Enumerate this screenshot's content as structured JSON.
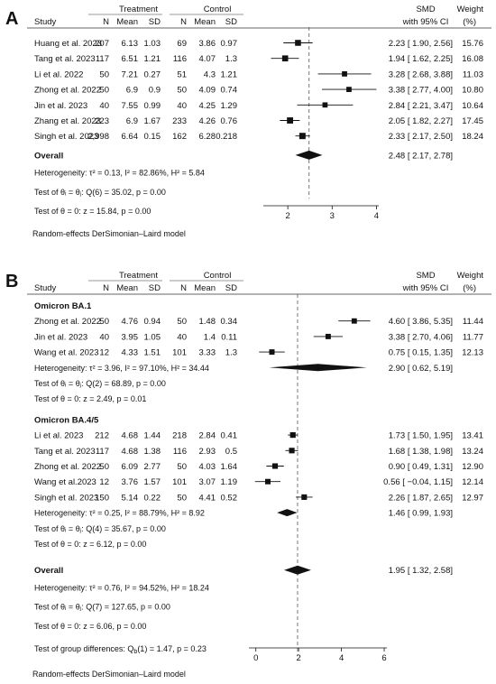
{
  "chart_data": [
    {
      "type": "forest",
      "panel": "A",
      "headers": {
        "study": "Study",
        "treatment": "Treatment",
        "control": "Control",
        "n": "N",
        "mean": "Mean",
        "sd": "SD",
        "effect_line1": "SMD",
        "effect_line2": "with 95% CI",
        "weight_line1": "Weight",
        "weight_line2": "(%)"
      },
      "xlim": [
        1,
        4.5
      ],
      "xticks": [
        2,
        3,
        4
      ],
      "null_line": 2.48,
      "groups": [
        {
          "label": "",
          "studies": [
            {
              "name": "Huang et al. 2023",
              "t_n": "207",
              "t_mean": "6.13",
              "t_sd": "1.03",
              "c_n": "69",
              "c_mean": "3.86",
              "c_sd": "0.97",
              "smd": 2.23,
              "lo": 1.9,
              "hi": 2.56,
              "ci_text": "2.23 [ 1.90, 2.56]",
              "weight": "15.76"
            },
            {
              "name": "Tang et al. 2023",
              "t_n": "117",
              "t_mean": "6.51",
              "t_sd": "1.21",
              "c_n": "116",
              "c_mean": "4.07",
              "c_sd": "1.3",
              "smd": 1.94,
              "lo": 1.62,
              "hi": 2.25,
              "ci_text": "1.94 [ 1.62, 2.25]",
              "weight": "16.08"
            },
            {
              "name": "Li et al. 2022",
              "t_n": "50",
              "t_mean": "7.21",
              "t_sd": "0.27",
              "c_n": "51",
              "c_mean": "4.3",
              "c_sd": "1.21",
              "smd": 3.28,
              "lo": 2.68,
              "hi": 3.88,
              "ci_text": "3.28 [ 2.68, 3.88]",
              "weight": "11.03"
            },
            {
              "name": "Zhong et al. 2022",
              "t_n": "50",
              "t_mean": "6.9",
              "t_sd": "0.9",
              "c_n": "50",
              "c_mean": "4.09",
              "c_sd": "0.74",
              "smd": 3.38,
              "lo": 2.77,
              "hi": 4.0,
              "ci_text": "3.38 [ 2.77, 4.00]",
              "weight": "10.80"
            },
            {
              "name": "Jin et al. 2023",
              "t_n": "40",
              "t_mean": "7.55",
              "t_sd": "0.99",
              "c_n": "40",
              "c_mean": "4.25",
              "c_sd": "1.29",
              "smd": 2.84,
              "lo": 2.21,
              "hi": 3.47,
              "ci_text": "2.84 [ 2.21, 3.47]",
              "weight": "10.64"
            },
            {
              "name": "Zhang et al. 2023",
              "t_n": "223",
              "t_mean": "6.9",
              "t_sd": "1.67",
              "c_n": "233",
              "c_mean": "4.26",
              "c_sd": "0.76",
              "smd": 2.05,
              "lo": 1.82,
              "hi": 2.27,
              "ci_text": "2.05 [ 1.82, 2.27]",
              "weight": "17.45"
            },
            {
              "name": "Singh et al. 2023",
              "t_n": "2,998",
              "t_mean": "6.64",
              "t_sd": "0.15",
              "c_n": "162",
              "c_mean": "6.28",
              "c_sd": "0.218",
              "smd": 2.33,
              "lo": 2.17,
              "hi": 2.5,
              "ci_text": "2.33 [ 2.17, 2.50]",
              "weight": "18.24"
            }
          ]
        }
      ],
      "overall": {
        "label": "Overall",
        "smd": 2.48,
        "lo": 2.17,
        "hi": 2.78,
        "ci_text": "2.48 [ 2.17, 2.78]",
        "stats": [
          "Heterogeneity: τ² = 0.13, I² = 82.86%, H² = 5.84",
          "Test of θᵢ = θⱼ: Q(6) = 35.02, p = 0.00",
          "Test of θ = 0: z = 15.84, p = 0.00"
        ]
      },
      "footer": "Random-effects DerSimonian–Laird model"
    },
    {
      "type": "forest",
      "panel": "B",
      "headers": {
        "study": "Study",
        "treatment": "Treatment",
        "control": "Control",
        "n": "N",
        "mean": "Mean",
        "sd": "SD",
        "effect_line1": "SMD",
        "effect_line2": "with 95% CI",
        "weight_line1": "Weight",
        "weight_line2": "(%)"
      },
      "xlim": [
        -1,
        6.8
      ],
      "xticks": [
        0,
        2,
        4,
        6
      ],
      "null_line": 1.95,
      "groups": [
        {
          "label": "Omicron BA.1",
          "studies": [
            {
              "name": "Zhong et al. 2022",
              "t_n": "50",
              "t_mean": "4.76",
              "t_sd": "0.94",
              "c_n": "50",
              "c_mean": "1.48",
              "c_sd": "0.34",
              "smd": 4.6,
              "lo": 3.86,
              "hi": 5.35,
              "ci_text": "4.60 [ 3.86, 5.35]",
              "weight": "11.44"
            },
            {
              "name": "Jin et al. 2023",
              "t_n": "40",
              "t_mean": "3.95",
              "t_sd": "1.05",
              "c_n": "40",
              "c_mean": "1.4",
              "c_sd": "0.11",
              "smd": 3.38,
              "lo": 2.7,
              "hi": 4.06,
              "ci_text": "3.38 [ 2.70, 4.06]",
              "weight": "11.77"
            },
            {
              "name": "Wang et al. 2023",
              "t_n": "12",
              "t_mean": "4.33",
              "t_sd": "1.51",
              "c_n": "101",
              "c_mean": "3.33",
              "c_sd": "1.3",
              "smd": 0.75,
              "lo": 0.15,
              "hi": 1.35,
              "ci_text": "0.75 [ 0.15, 1.35]",
              "weight": "12.13"
            }
          ],
          "subtotal": {
            "smd": 2.9,
            "lo": 0.62,
            "hi": 5.19,
            "ci_text": "2.90 [ 0.62, 5.19]",
            "stats": [
              "Heterogeneity: τ² = 3.96, I² = 97.10%, H² = 34.44",
              "Test of θᵢ = θⱼ: Q(2) = 68.89, p = 0.00",
              "Test of θ = 0: z = 2.49, p = 0.01"
            ]
          }
        },
        {
          "label": "Omicron BA.4/5",
          "studies": [
            {
              "name": "Li et al. 2023",
              "t_n": "212",
              "t_mean": "4.68",
              "t_sd": "1.44",
              "c_n": "218",
              "c_mean": "2.84",
              "c_sd": "0.41",
              "smd": 1.73,
              "lo": 1.5,
              "hi": 1.95,
              "ci_text": "1.73 [ 1.50, 1.95]",
              "weight": "13.41"
            },
            {
              "name": "Tang et al. 2023",
              "t_n": "117",
              "t_mean": "4.68",
              "t_sd": "1.38",
              "c_n": "116",
              "c_mean": "2.93",
              "c_sd": "0.5",
              "smd": 1.68,
              "lo": 1.38,
              "hi": 1.98,
              "ci_text": "1.68 [ 1.38, 1.98]",
              "weight": "13.24"
            },
            {
              "name": "Zhong et al. 2022",
              "t_n": "50",
              "t_mean": "6.09",
              "t_sd": "2.77",
              "c_n": "50",
              "c_mean": "4.03",
              "c_sd": "1.64",
              "smd": 0.9,
              "lo": 0.49,
              "hi": 1.31,
              "ci_text": "0.90 [ 0.49, 1.31]",
              "weight": "12.90"
            },
            {
              "name": "Wang et al.2023",
              "t_n": "12",
              "t_mean": "3.76",
              "t_sd": "1.57",
              "c_n": "101",
              "c_mean": "3.07",
              "c_sd": "1.19",
              "smd": 0.56,
              "lo": -0.04,
              "hi": 1.15,
              "ci_text": "0.56 [ −0.04, 1.15]",
              "weight": "12.14"
            },
            {
              "name": "Singh et al. 2023",
              "t_n": "150",
              "t_mean": "5.14",
              "t_sd": "0.22",
              "c_n": "50",
              "c_mean": "4.41",
              "c_sd": "0.52",
              "smd": 2.26,
              "lo": 1.87,
              "hi": 2.65,
              "ci_text": "2.26 [ 1.87, 2.65]",
              "weight": "12.97"
            }
          ],
          "subtotal": {
            "smd": 1.46,
            "lo": 0.99,
            "hi": 1.93,
            "ci_text": "1.46 [ 0.99, 1.93]",
            "stats": [
              "Heterogeneity: τ² = 0.25, I² = 88.79%, H² = 8.92",
              "Test of θᵢ = θⱼ: Q(4) = 35.67, p = 0.00",
              "Test of θ = 0: z = 6.12, p = 0.00"
            ]
          }
        }
      ],
      "overall": {
        "label": "Overall",
        "smd": 1.95,
        "lo": 1.32,
        "hi": 2.58,
        "ci_text": "1.95 [ 1.32, 2.58]",
        "stats": [
          "Heterogeneity: τ² = 0.76, I² = 94.52%, H² = 18.24",
          "Test of θᵢ = θⱼ: Q(7) = 127.65, p = 0.00",
          "Test of θ = 0: z = 6.06, p = 0.00"
        ]
      },
      "group_test": "Test of group differences: Q_b(1) = 1.47, p = 0.23",
      "footer": "Random-effects DerSimonian–Laird model"
    }
  ]
}
